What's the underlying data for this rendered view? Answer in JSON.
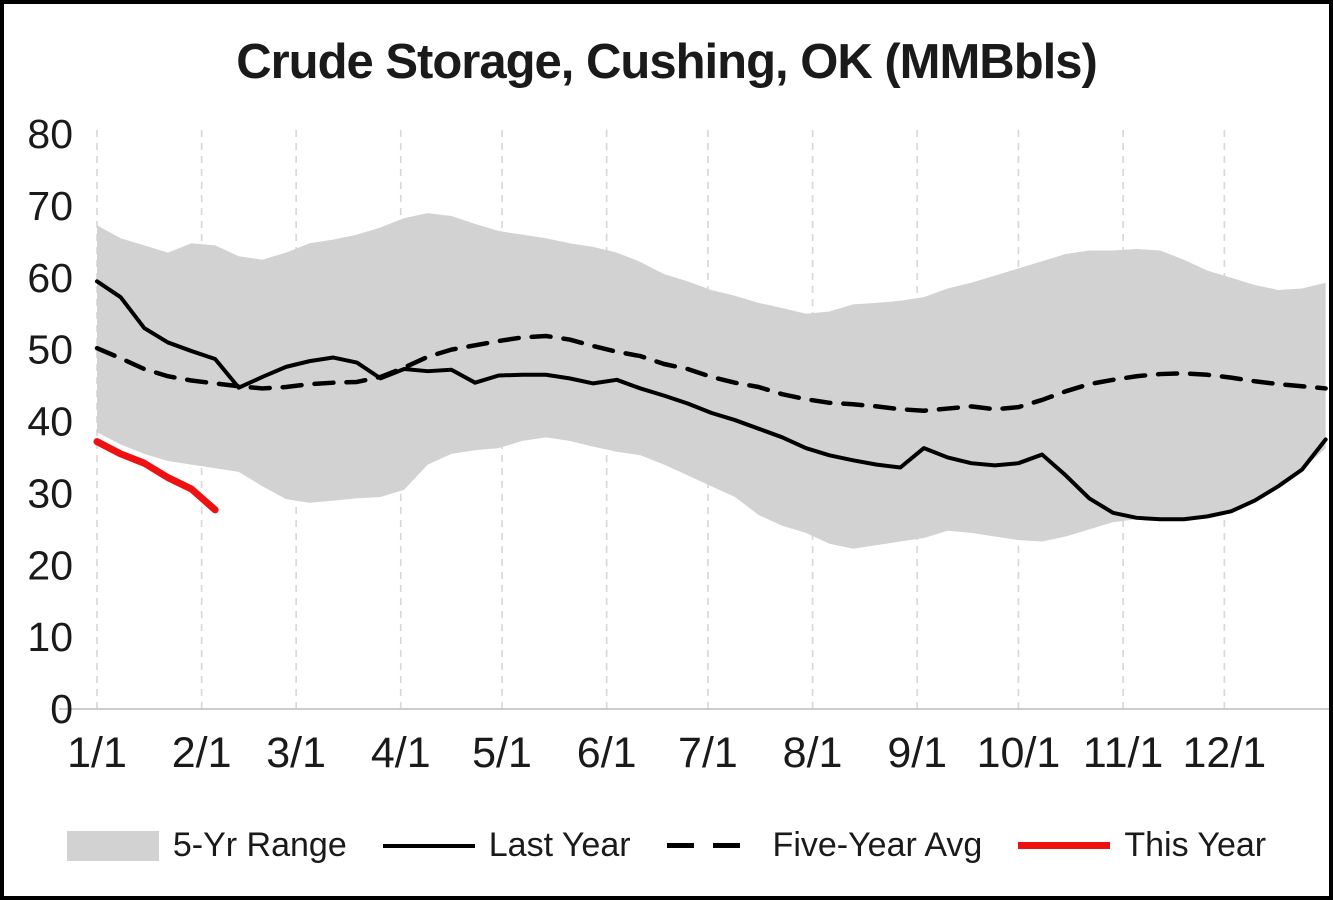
{
  "title": "Crude Storage, Cushing, OK (MMBbls)",
  "colors": {
    "range_fill": "#d2d2d2",
    "last_year": "#000000",
    "five_year_avg": "#000000",
    "this_year": "#ee1111",
    "gridline": "#d9d9d9",
    "axis_line": "#c6c6c6",
    "text": "#1a1a1a"
  },
  "legend": [
    {
      "label": "5-Yr Range",
      "swatch": "area"
    },
    {
      "label": "Last Year",
      "swatch": "solid-line"
    },
    {
      "label": "Five-Year Avg",
      "swatch": "dashed-line"
    },
    {
      "label": "This Year",
      "swatch": "red-line"
    }
  ],
  "chart_data": {
    "type": "line",
    "title": "Crude Storage, Cushing, OK (MMBbls)",
    "ylabel": "",
    "xlabel": "",
    "ylim": [
      0,
      80
    ],
    "y_ticks": [
      0,
      10,
      20,
      30,
      40,
      50,
      60,
      70,
      80
    ],
    "x_max": 365,
    "x_ticks": [
      {
        "label": "1/1",
        "day": 0
      },
      {
        "label": "2/1",
        "day": 31
      },
      {
        "label": "3/1",
        "day": 59
      },
      {
        "label": "4/1",
        "day": 90
      },
      {
        "label": "5/1",
        "day": 120
      },
      {
        "label": "6/1",
        "day": 151
      },
      {
        "label": "7/1",
        "day": 181
      },
      {
        "label": "8/1",
        "day": 212
      },
      {
        "label": "9/1",
        "day": 243
      },
      {
        "label": "10/1",
        "day": 273
      },
      {
        "label": "11/1",
        "day": 304
      },
      {
        "label": "12/1",
        "day": 334
      }
    ],
    "days": [
      0,
      7,
      14,
      21,
      28,
      35,
      42,
      49,
      56,
      63,
      70,
      77,
      84,
      91,
      98,
      105,
      112,
      119,
      126,
      133,
      140,
      147,
      154,
      161,
      168,
      175,
      182,
      189,
      196,
      203,
      210,
      217,
      224,
      231,
      238,
      245,
      252,
      259,
      266,
      273,
      280,
      287,
      294,
      301,
      308,
      315,
      322,
      329,
      336,
      343,
      350,
      357,
      364
    ],
    "series": [
      {
        "name": "5-Yr Range",
        "type": "band",
        "upper": [
          67.3,
          65.5,
          64.5,
          63.5,
          64.8,
          64.5,
          63.0,
          62.5,
          63.5,
          64.8,
          65.3,
          66.0,
          67.0,
          68.3,
          69.0,
          68.6,
          67.5,
          66.5,
          66.0,
          65.5,
          64.8,
          64.3,
          63.5,
          62.2,
          60.5,
          59.5,
          58.3,
          57.5,
          56.5,
          55.8,
          55.0,
          55.3,
          56.3,
          56.5,
          56.8,
          57.3,
          58.5,
          59.3,
          60.3,
          61.3,
          62.3,
          63.3,
          63.8,
          63.8,
          64.0,
          63.8,
          62.5,
          61.0,
          60.0,
          59.0,
          58.3,
          58.5,
          59.3
        ],
        "lower": [
          38.5,
          36.8,
          35.5,
          34.5,
          34.0,
          33.5,
          33.0,
          31.0,
          29.2,
          28.7,
          29.0,
          29.3,
          29.5,
          30.5,
          34.0,
          35.5,
          36.0,
          36.3,
          37.3,
          37.8,
          37.3,
          36.5,
          35.8,
          35.3,
          34.0,
          32.5,
          31.0,
          29.5,
          27.0,
          25.5,
          24.5,
          23.0,
          22.3,
          22.8,
          23.3,
          23.8,
          24.8,
          24.5,
          24.0,
          23.5,
          23.3,
          24.0,
          25.0,
          26.0,
          26.4,
          26.4,
          26.4,
          26.8,
          27.5,
          29.0,
          31.0,
          33.3,
          36.3
        ]
      },
      {
        "name": "Last Year",
        "type": "line",
        "color_key": "last_year",
        "width": 4,
        "values": [
          59.5,
          57.3,
          53.0,
          51.0,
          49.8,
          48.7,
          44.7,
          46.2,
          47.6,
          48.4,
          48.9,
          48.2,
          46.0,
          47.3,
          47.0,
          47.2,
          45.4,
          46.4,
          46.5,
          46.5,
          46.0,
          45.3,
          45.8,
          44.6,
          43.6,
          42.5,
          41.2,
          40.2,
          39.0,
          37.8,
          36.3,
          35.3,
          34.6,
          34.0,
          33.6,
          36.3,
          35.0,
          34.2,
          33.9,
          34.2,
          35.4,
          32.5,
          29.3,
          27.3,
          26.6,
          26.4,
          26.4,
          26.8,
          27.5,
          29.0,
          31.0,
          33.3,
          37.5
        ]
      },
      {
        "name": "Five-Year Avg",
        "type": "line",
        "color_key": "five_year_avg",
        "width": 4.5,
        "dash": "19 13",
        "values": [
          50.2,
          48.8,
          47.3,
          46.3,
          45.7,
          45.3,
          44.9,
          44.6,
          44.8,
          45.2,
          45.4,
          45.5,
          46.2,
          47.5,
          49.0,
          50.0,
          50.6,
          51.2,
          51.7,
          51.9,
          51.4,
          50.5,
          49.7,
          49.1,
          48.0,
          47.3,
          46.2,
          45.4,
          44.8,
          43.8,
          43.1,
          42.6,
          42.4,
          42.1,
          41.7,
          41.5,
          41.8,
          42.1,
          41.7,
          42.0,
          43.0,
          44.2,
          45.2,
          45.8,
          46.3,
          46.6,
          46.7,
          46.5,
          46.1,
          45.6,
          45.2,
          44.9,
          44.6
        ]
      },
      {
        "name": "This Year",
        "type": "line",
        "color_key": "this_year",
        "width": 7,
        "days": [
          0,
          7,
          14,
          21,
          28,
          35
        ],
        "values": [
          37.2,
          35.5,
          34.2,
          32.2,
          30.6,
          27.7
        ]
      }
    ]
  }
}
